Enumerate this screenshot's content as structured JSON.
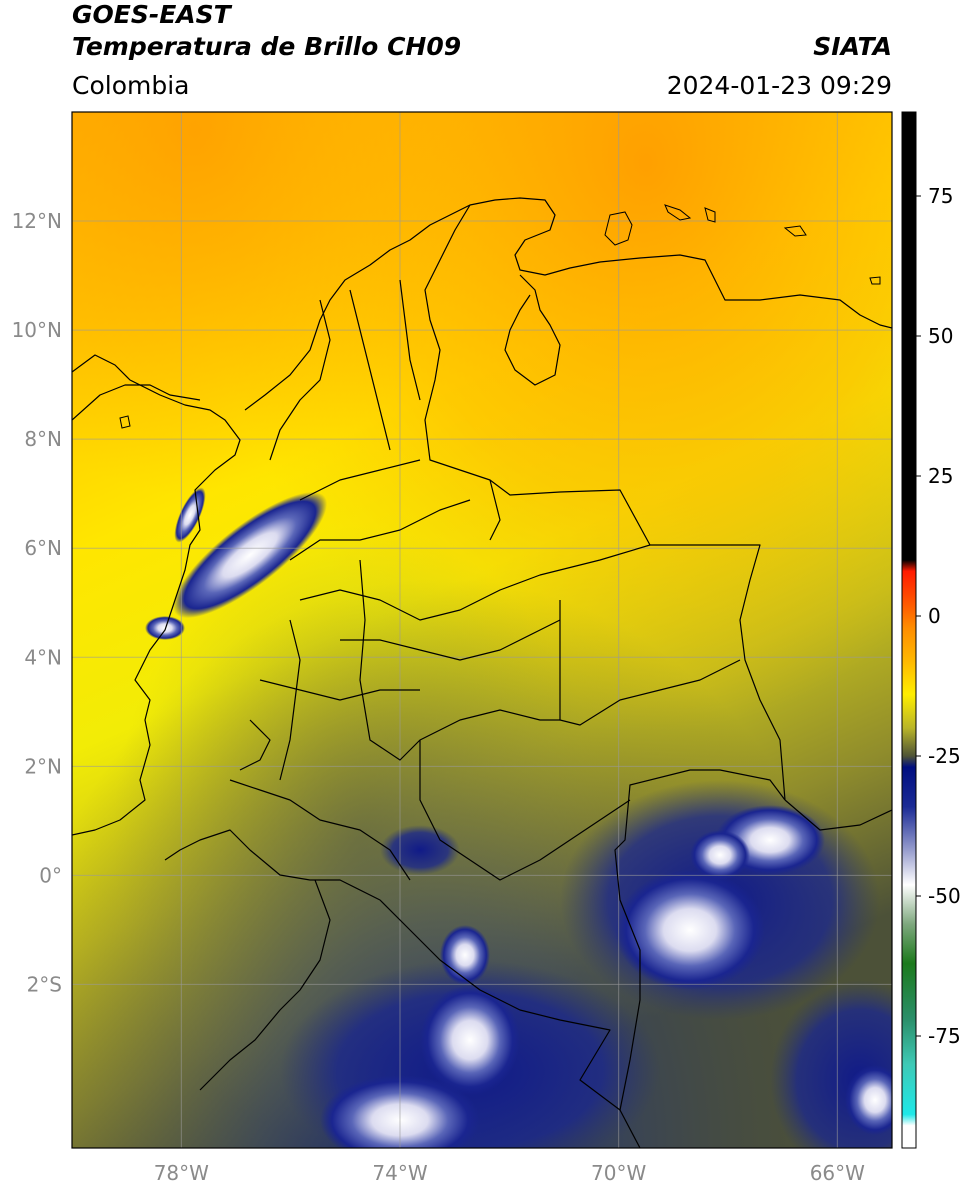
{
  "header": {
    "satellite": "GOES-EAST",
    "product": "Temperatura de Brillo CH09",
    "agency": "SIATA",
    "region": "Colombia",
    "datetime": "2024-01-23 09:29"
  },
  "map": {
    "lon_range": [
      -80,
      -65
    ],
    "lat_range": [
      -5.0,
      14.0
    ],
    "lon_ticks": [
      {
        "value": -78,
        "label": "78°W"
      },
      {
        "value": -74,
        "label": "74°W"
      },
      {
        "value": -70,
        "label": "70°W"
      },
      {
        "value": -66,
        "label": "66°W"
      }
    ],
    "lat_ticks": [
      {
        "value": 12,
        "label": "12°N"
      },
      {
        "value": 10,
        "label": "10°N"
      },
      {
        "value": 8,
        "label": "8°N"
      },
      {
        "value": 6,
        "label": "6°N"
      },
      {
        "value": 4,
        "label": "4°N"
      },
      {
        "value": 2,
        "label": "2°N"
      },
      {
        "value": 0,
        "label": "0°"
      },
      {
        "value": -2,
        "label": "2°S"
      }
    ],
    "grid": true
  },
  "colorbar": {
    "range": [
      -95,
      90
    ],
    "ticks": [
      {
        "value": 75,
        "label": "75"
      },
      {
        "value": 50,
        "label": "50"
      },
      {
        "value": 25,
        "label": "25"
      },
      {
        "value": 0,
        "label": "0"
      },
      {
        "value": -25,
        "label": "-25"
      },
      {
        "value": -50,
        "label": "-50"
      },
      {
        "value": -75,
        "label": "-75"
      }
    ],
    "stops": [
      {
        "t": 90,
        "color": "#000000"
      },
      {
        "t": 10,
        "color": "#000000"
      },
      {
        "t": 8,
        "color": "#ff1a00"
      },
      {
        "t": 2,
        "color": "#ff5a00"
      },
      {
        "t": -2,
        "color": "#ff8c00"
      },
      {
        "t": -8,
        "color": "#ffb800"
      },
      {
        "t": -14,
        "color": "#ffee00"
      },
      {
        "t": -20,
        "color": "#b9b528"
      },
      {
        "t": -25,
        "color": "#4f5436"
      },
      {
        "t": -27,
        "color": "#000e80"
      },
      {
        "t": -34,
        "color": "#1a2a95"
      },
      {
        "t": -42,
        "color": "#9aa0cf"
      },
      {
        "t": -48,
        "color": "#ffffff"
      },
      {
        "t": -55,
        "color": "#7ea87e"
      },
      {
        "t": -62,
        "color": "#1c7a1c"
      },
      {
        "t": -72,
        "color": "#2a8f6a"
      },
      {
        "t": -80,
        "color": "#3ec9b5"
      },
      {
        "t": -89,
        "color": "#1ee8e8"
      },
      {
        "t": -91,
        "color": "#ffffff"
      },
      {
        "t": -95,
        "color": "#ffffff"
      }
    ]
  }
}
